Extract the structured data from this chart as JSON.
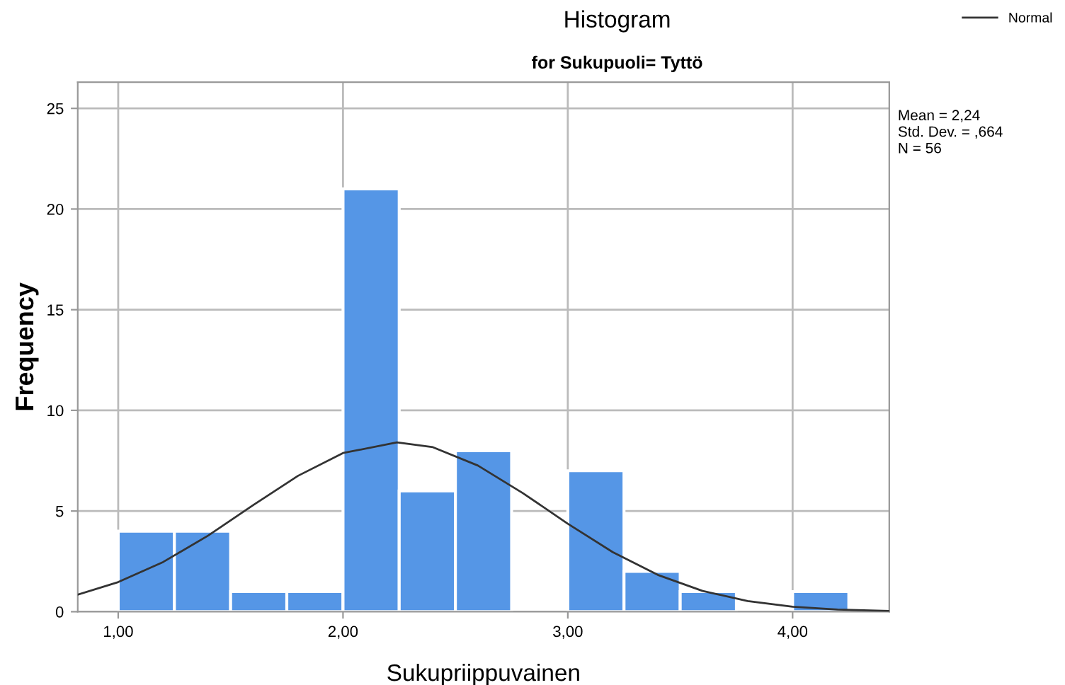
{
  "chart_data": {
    "type": "histogram",
    "title": "Histogram",
    "subtitle": "for Sukupuoli= Tyttö",
    "xlabel": "Sukupriippuvainen",
    "ylabel": "Frequency",
    "bins": [
      1.0,
      1.25,
      1.5,
      1.75,
      2.0,
      2.25,
      2.5,
      2.75,
      3.0,
      3.25,
      3.5,
      3.75,
      4.0,
      4.25
    ],
    "values": [
      4,
      4,
      1,
      1,
      21,
      6,
      8,
      0,
      7,
      2,
      1,
      0,
      1
    ],
    "color": "#5596e6",
    "series": [
      {
        "name": "Normal",
        "type": "line",
        "color": "#333333",
        "x": [
          0.82,
          1.0,
          1.2,
          1.4,
          1.6,
          1.8,
          2.0,
          2.24,
          2.4,
          2.6,
          2.8,
          3.0,
          3.2,
          3.4,
          3.6,
          3.8,
          4.0,
          4.2,
          4.43
        ],
        "values": [
          0.85,
          1.47,
          2.47,
          3.78,
          5.29,
          6.75,
          7.88,
          8.41,
          8.17,
          7.26,
          5.89,
          4.37,
          2.96,
          1.83,
          1.03,
          0.53,
          0.25,
          0.11,
          0.04
        ]
      }
    ],
    "xlim": [
      0.82,
      4.43
    ],
    "ylim": [
      0,
      26.3
    ],
    "xticks": [
      {
        "value": 1,
        "label": "1,00"
      },
      {
        "value": 2,
        "label": "2,00"
      },
      {
        "value": 3,
        "label": "3,00"
      },
      {
        "value": 4,
        "label": "4,00"
      }
    ],
    "yticks": [
      0,
      5,
      10,
      15,
      20,
      25
    ],
    "grid": true,
    "legend": "top right",
    "annotations": [
      "Mean = 2,24",
      "Std. Dev. = ,664",
      "N = 56"
    ]
  }
}
